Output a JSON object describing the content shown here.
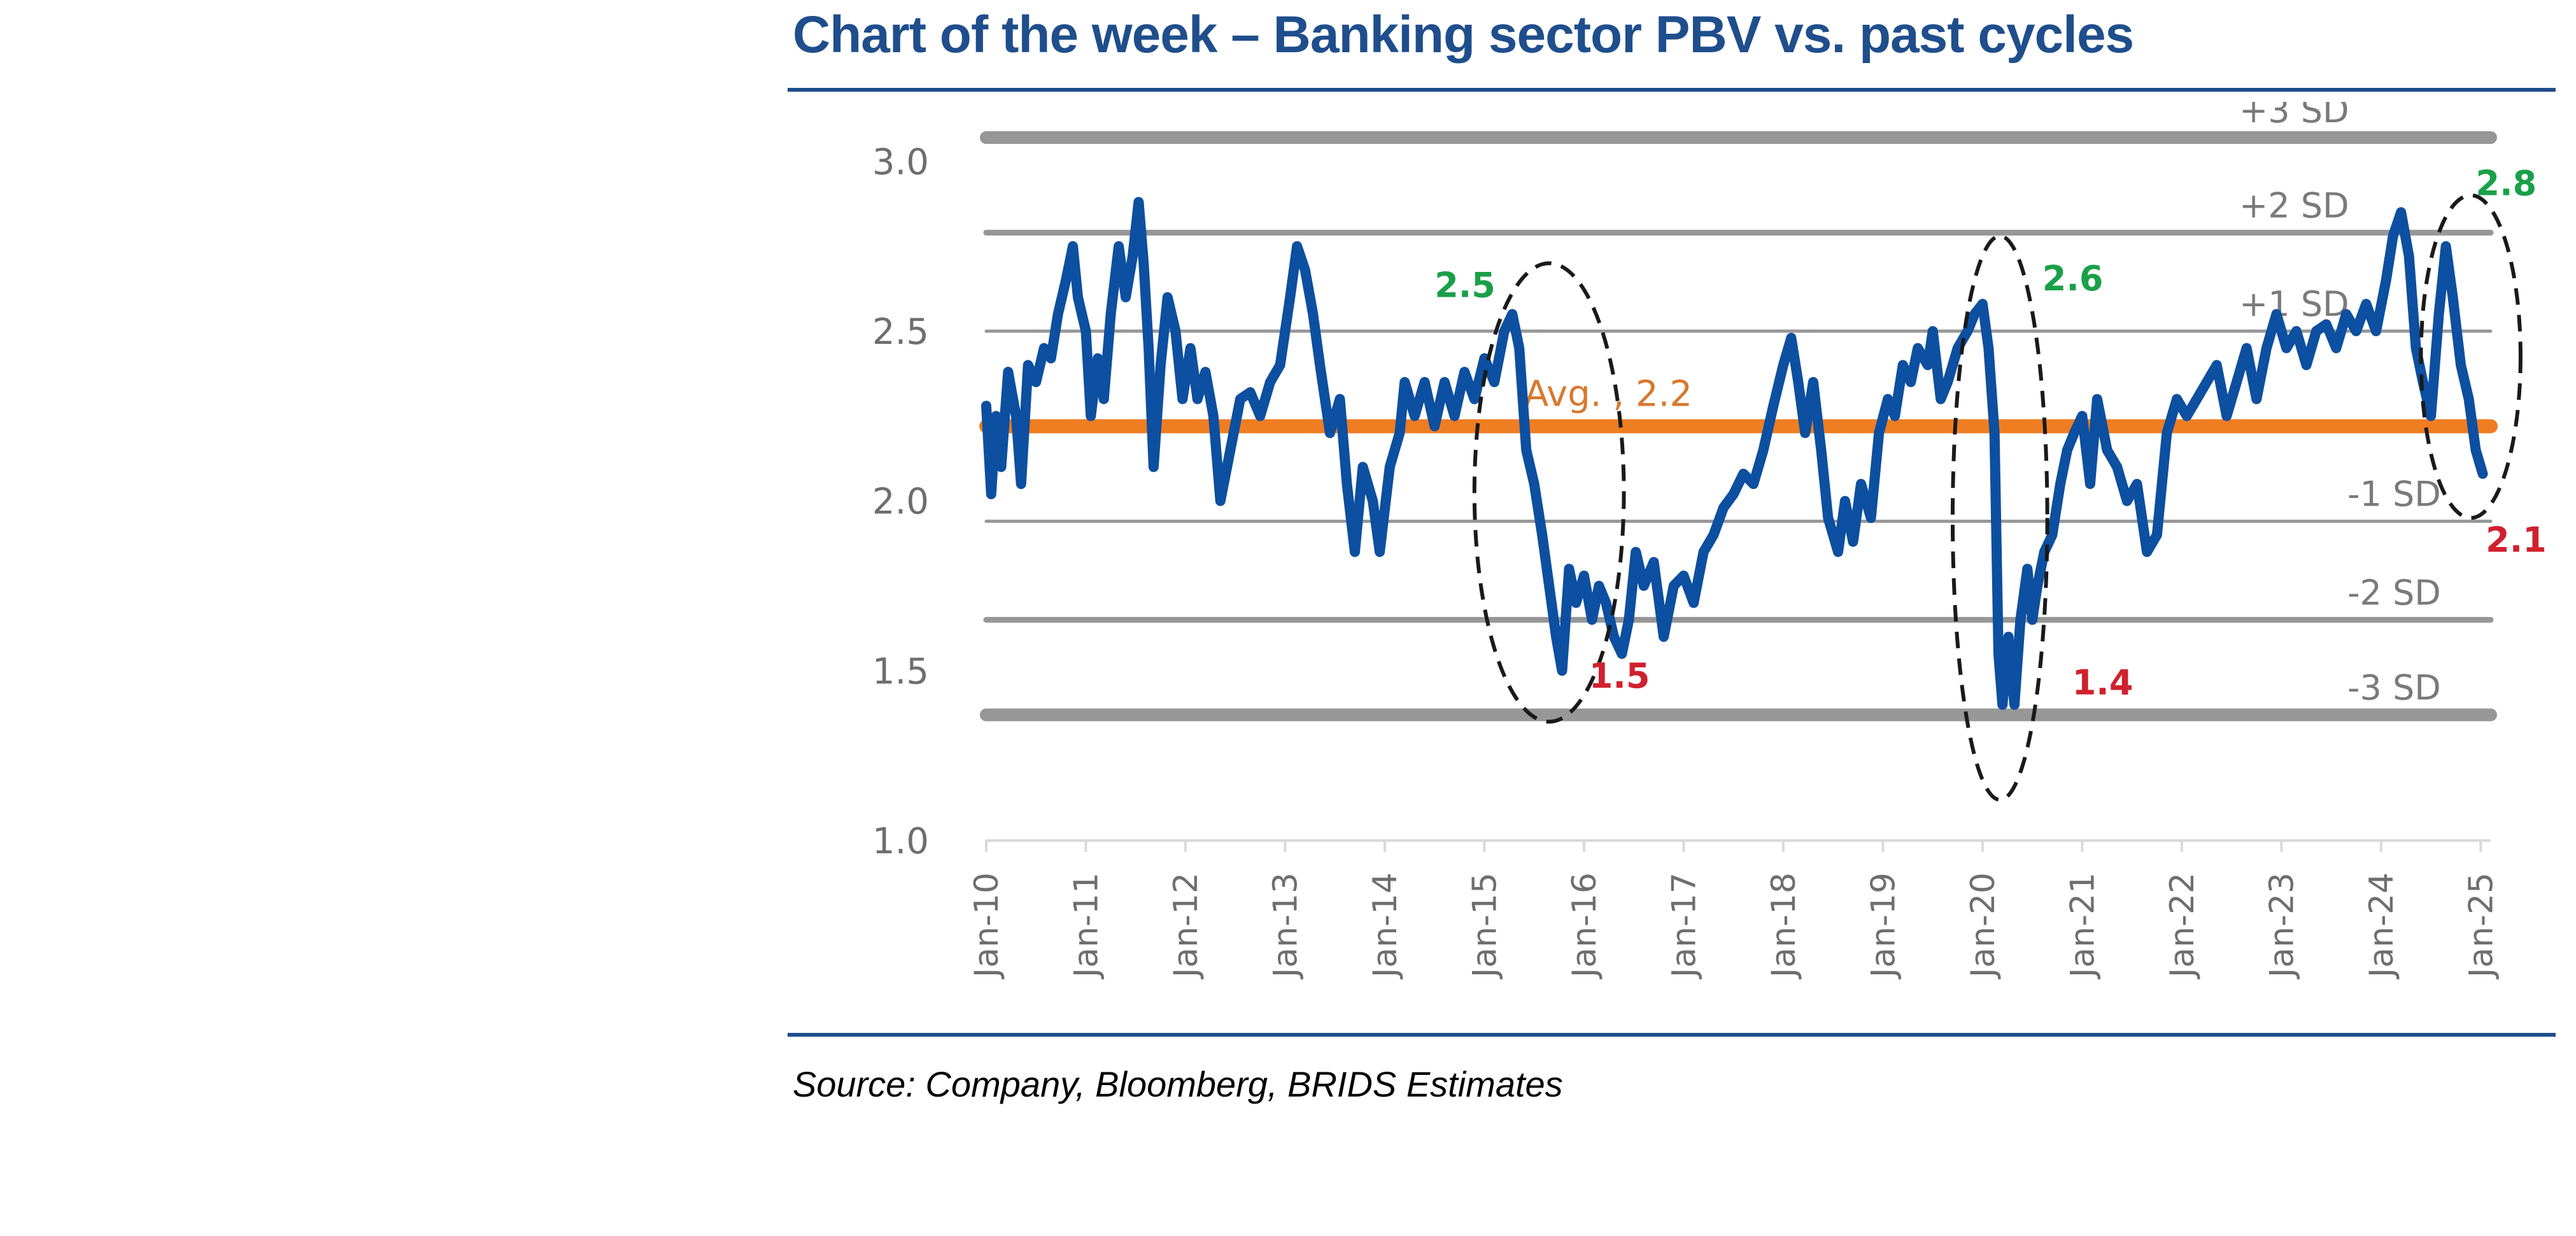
{
  "title": "Chart of the week – Banking sector PBV vs. past cycles",
  "source": "Source: Company, Bloomberg, BRIDS Estimates",
  "colors": {
    "title": "#1f4e8c",
    "rule": "#1f4e8c",
    "series": "#0d4fa0",
    "average": "#ef7d22",
    "sd_band": "#8c8c8c",
    "peak_label": "#1aa049",
    "trough_label": "#d0202e"
  },
  "chart_data": {
    "type": "line",
    "ylim": [
      1.0,
      3.0
    ],
    "y_ticks": [
      "1.0",
      "1.5",
      "2.0",
      "2.5",
      "3.0"
    ],
    "x_ticks": [
      "Jan-10",
      "Jan-11",
      "Jan-12",
      "Jan-13",
      "Jan-14",
      "Jan-15",
      "Jan-16",
      "Jan-17",
      "Jan-18",
      "Jan-19",
      "Jan-20",
      "Jan-21",
      "Jan-22",
      "Jan-23",
      "Jan-24",
      "Jan-25"
    ],
    "series": [
      {
        "values": [
          [
            2010.0,
            2.28
          ],
          [
            2010.05,
            2.02
          ],
          [
            2010.1,
            2.25
          ],
          [
            2010.15,
            2.1
          ],
          [
            2010.22,
            2.38
          ],
          [
            2010.3,
            2.25
          ],
          [
            2010.35,
            2.05
          ],
          [
            2010.42,
            2.4
          ],
          [
            2010.5,
            2.35
          ],
          [
            2010.58,
            2.45
          ],
          [
            2010.65,
            2.42
          ],
          [
            2010.72,
            2.55
          ],
          [
            2010.8,
            2.65
          ],
          [
            2010.87,
            2.75
          ],
          [
            2010.92,
            2.6
          ],
          [
            2011.0,
            2.5
          ],
          [
            2011.05,
            2.25
          ],
          [
            2011.12,
            2.42
          ],
          [
            2011.18,
            2.3
          ],
          [
            2011.25,
            2.55
          ],
          [
            2011.33,
            2.75
          ],
          [
            2011.4,
            2.6
          ],
          [
            2011.47,
            2.72
          ],
          [
            2011.53,
            2.88
          ],
          [
            2011.58,
            2.7
          ],
          [
            2011.63,
            2.45
          ],
          [
            2011.68,
            2.1
          ],
          [
            2011.75,
            2.4
          ],
          [
            2011.82,
            2.6
          ],
          [
            2011.9,
            2.5
          ],
          [
            2011.97,
            2.3
          ],
          [
            2012.05,
            2.45
          ],
          [
            2012.12,
            2.3
          ],
          [
            2012.2,
            2.38
          ],
          [
            2012.28,
            2.25
          ],
          [
            2012.35,
            2.0
          ],
          [
            2012.45,
            2.15
          ],
          [
            2012.55,
            2.3
          ],
          [
            2012.65,
            2.32
          ],
          [
            2012.75,
            2.25
          ],
          [
            2012.85,
            2.35
          ],
          [
            2012.95,
            2.4
          ],
          [
            2013.05,
            2.6
          ],
          [
            2013.12,
            2.75
          ],
          [
            2013.2,
            2.68
          ],
          [
            2013.28,
            2.55
          ],
          [
            2013.35,
            2.4
          ],
          [
            2013.45,
            2.2
          ],
          [
            2013.55,
            2.3
          ],
          [
            2013.62,
            2.05
          ],
          [
            2013.7,
            1.85
          ],
          [
            2013.78,
            2.1
          ],
          [
            2013.88,
            2.0
          ],
          [
            2013.95,
            1.85
          ],
          [
            2014.05,
            2.1
          ],
          [
            2014.15,
            2.2
          ],
          [
            2014.2,
            2.35
          ],
          [
            2014.3,
            2.25
          ],
          [
            2014.4,
            2.35
          ],
          [
            2014.5,
            2.22
          ],
          [
            2014.6,
            2.35
          ],
          [
            2014.7,
            2.25
          ],
          [
            2014.8,
            2.38
          ],
          [
            2014.9,
            2.3
          ],
          [
            2015.0,
            2.42
          ],
          [
            2015.1,
            2.35
          ],
          [
            2015.2,
            2.5
          ],
          [
            2015.28,
            2.55
          ],
          [
            2015.35,
            2.45
          ],
          [
            2015.42,
            2.15
          ],
          [
            2015.5,
            2.05
          ],
          [
            2015.58,
            1.9
          ],
          [
            2015.65,
            1.75
          ],
          [
            2015.72,
            1.6
          ],
          [
            2015.78,
            1.5
          ],
          [
            2015.85,
            1.8
          ],
          [
            2015.92,
            1.7
          ],
          [
            2016.0,
            1.78
          ],
          [
            2016.08,
            1.65
          ],
          [
            2016.15,
            1.75
          ],
          [
            2016.22,
            1.7
          ],
          [
            2016.3,
            1.6
          ],
          [
            2016.38,
            1.55
          ],
          [
            2016.45,
            1.65
          ],
          [
            2016.52,
            1.85
          ],
          [
            2016.6,
            1.75
          ],
          [
            2016.7,
            1.82
          ],
          [
            2016.8,
            1.6
          ],
          [
            2016.9,
            1.75
          ],
          [
            2017.0,
            1.78
          ],
          [
            2017.1,
            1.7
          ],
          [
            2017.2,
            1.85
          ],
          [
            2017.3,
            1.9
          ],
          [
            2017.4,
            1.98
          ],
          [
            2017.5,
            2.02
          ],
          [
            2017.6,
            2.08
          ],
          [
            2017.7,
            2.05
          ],
          [
            2017.8,
            2.15
          ],
          [
            2017.9,
            2.28
          ],
          [
            2018.0,
            2.4
          ],
          [
            2018.08,
            2.48
          ],
          [
            2018.15,
            2.35
          ],
          [
            2018.22,
            2.2
          ],
          [
            2018.3,
            2.35
          ],
          [
            2018.38,
            2.15
          ],
          [
            2018.45,
            1.95
          ],
          [
            2018.55,
            1.85
          ],
          [
            2018.62,
            2.0
          ],
          [
            2018.7,
            1.88
          ],
          [
            2018.78,
            2.05
          ],
          [
            2018.88,
            1.95
          ],
          [
            2018.96,
            2.2
          ],
          [
            2019.05,
            2.3
          ],
          [
            2019.12,
            2.25
          ],
          [
            2019.2,
            2.4
          ],
          [
            2019.28,
            2.35
          ],
          [
            2019.35,
            2.45
          ],
          [
            2019.45,
            2.4
          ],
          [
            2019.5,
            2.5
          ],
          [
            2019.58,
            2.3
          ],
          [
            2019.65,
            2.35
          ],
          [
            2019.75,
            2.45
          ],
          [
            2019.85,
            2.5
          ],
          [
            2019.92,
            2.55
          ],
          [
            2020.0,
            2.58
          ],
          [
            2020.06,
            2.45
          ],
          [
            2020.12,
            2.2
          ],
          [
            2020.16,
            1.55
          ],
          [
            2020.2,
            1.4
          ],
          [
            2020.26,
            1.6
          ],
          [
            2020.32,
            1.4
          ],
          [
            2020.38,
            1.65
          ],
          [
            2020.45,
            1.8
          ],
          [
            2020.5,
            1.65
          ],
          [
            2020.55,
            1.75
          ],
          [
            2020.62,
            1.85
          ],
          [
            2020.7,
            1.9
          ],
          [
            2020.78,
            2.05
          ],
          [
            2020.85,
            2.15
          ],
          [
            2020.92,
            2.2
          ],
          [
            2021.0,
            2.25
          ],
          [
            2021.08,
            2.05
          ],
          [
            2021.15,
            2.3
          ],
          [
            2021.25,
            2.15
          ],
          [
            2021.35,
            2.1
          ],
          [
            2021.45,
            2.0
          ],
          [
            2021.55,
            2.05
          ],
          [
            2021.65,
            1.85
          ],
          [
            2021.75,
            1.9
          ],
          [
            2021.85,
            2.2
          ],
          [
            2021.95,
            2.3
          ],
          [
            2022.05,
            2.25
          ],
          [
            2022.15,
            2.3
          ],
          [
            2022.25,
            2.35
          ],
          [
            2022.35,
            2.4
          ],
          [
            2022.45,
            2.25
          ],
          [
            2022.55,
            2.35
          ],
          [
            2022.65,
            2.45
          ],
          [
            2022.75,
            2.3
          ],
          [
            2022.85,
            2.45
          ],
          [
            2022.95,
            2.55
          ],
          [
            2023.05,
            2.45
          ],
          [
            2023.15,
            2.5
          ],
          [
            2023.25,
            2.4
          ],
          [
            2023.35,
            2.5
          ],
          [
            2023.45,
            2.52
          ],
          [
            2023.55,
            2.45
          ],
          [
            2023.65,
            2.55
          ],
          [
            2023.75,
            2.5
          ],
          [
            2023.85,
            2.58
          ],
          [
            2023.95,
            2.5
          ],
          [
            2024.05,
            2.65
          ],
          [
            2024.12,
            2.78
          ],
          [
            2024.2,
            2.85
          ],
          [
            2024.28,
            2.72
          ],
          [
            2024.35,
            2.45
          ],
          [
            2024.42,
            2.35
          ],
          [
            2024.5,
            2.25
          ],
          [
            2024.58,
            2.55
          ],
          [
            2024.65,
            2.75
          ],
          [
            2024.72,
            2.6
          ],
          [
            2024.8,
            2.4
          ],
          [
            2024.88,
            2.3
          ],
          [
            2024.95,
            2.15
          ],
          [
            2025.02,
            2.08
          ]
        ]
      }
    ],
    "average": {
      "value": 2.22,
      "label": "Avg. , 2.2"
    },
    "sd_lines": [
      {
        "label": "+3 SD",
        "value": 3.07
      },
      {
        "label": "+2 SD",
        "value": 2.79
      },
      {
        "label": "+1 SD",
        "value": 2.5
      },
      {
        "label": "-1 SD",
        "value": 1.94
      },
      {
        "label": "-2 SD",
        "value": 1.65
      },
      {
        "label": "-3 SD",
        "value": 1.37
      }
    ],
    "annotations": [
      {
        "text": "2.5",
        "x": 2014.5,
        "y": 2.6,
        "kind": "peak"
      },
      {
        "text": "1.5",
        "x": 2016.05,
        "y": 1.45,
        "kind": "trough"
      },
      {
        "text": "2.6",
        "x": 2020.6,
        "y": 2.62,
        "kind": "peak"
      },
      {
        "text": "1.4",
        "x": 2020.9,
        "y": 1.43,
        "kind": "trough"
      },
      {
        "text": "2.8",
        "x": 2024.95,
        "y": 2.9,
        "kind": "peak"
      },
      {
        "text": "2.1",
        "x": 2025.05,
        "y": 1.85,
        "kind": "trough"
      }
    ],
    "highlight_ellipses": [
      {
        "x0": 2014.9,
        "x1": 2016.4,
        "y0": 1.35,
        "y1": 2.7
      },
      {
        "x0": 2019.7,
        "x1": 2020.65,
        "y0": 1.12,
        "y1": 2.78
      },
      {
        "x0": 2024.4,
        "x1": 2025.4,
        "y0": 1.95,
        "y1": 2.9
      }
    ]
  }
}
